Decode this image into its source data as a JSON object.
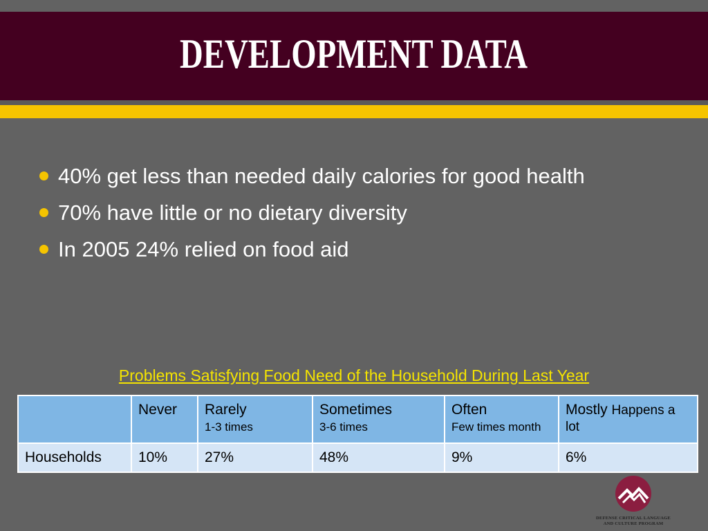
{
  "slide": {
    "title": "DEVELOPMENT DATA",
    "colors": {
      "title_band": "#440020",
      "accent": "#f5c400",
      "background": "#626262"
    }
  },
  "bullets": [
    "40% get less than needed daily calories for good health",
    "70% have little or no dietary diversity",
    "In 2005 24% relied on food aid"
  ],
  "table": {
    "caption": "Problems Satisfying Food Need of the Household During Last Year",
    "header": {
      "blank": "",
      "never": {
        "label": "Never"
      },
      "rarely": {
        "label": "Rarely",
        "sub": "1-3 times"
      },
      "sometimes": {
        "label": "Sometimes",
        "sub": "3-6 times"
      },
      "often": {
        "label": "Often",
        "sub": "Few times month"
      },
      "mostly": {
        "label": "Mostly",
        "sub": "Happens a lot"
      }
    },
    "row": {
      "label": "Households",
      "values": [
        "10%",
        "27%",
        "48%",
        "9%",
        "6%"
      ]
    }
  },
  "logo": {
    "icon": "mountain-logo-icon",
    "line1": "DEFENSE CRITICAL LANGUAGE",
    "line2": "AND CULTURE PROGRAM"
  }
}
